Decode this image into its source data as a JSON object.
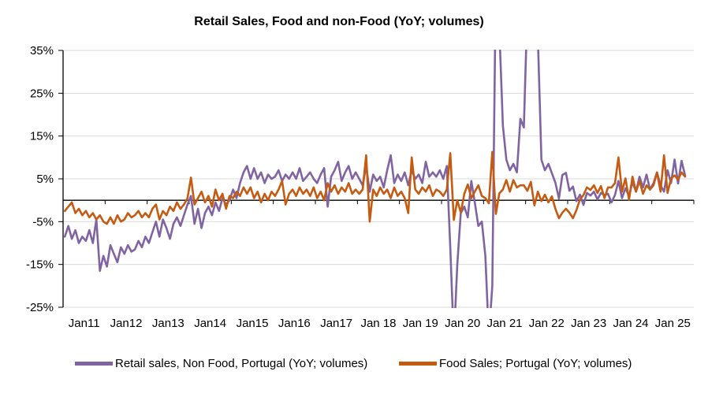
{
  "title": "Retail Sales, Food and non-Food (YoY; volumes)",
  "chart_data": {
    "type": "line",
    "title": "Retail Sales, Food and non-Food (YoY; volumes)",
    "x_unit": "month",
    "x_start_label": "Jan11",
    "x_axis_months_span": 180,
    "x_tick_labels": [
      "Jan11",
      "Jan12",
      "Jan13",
      "Jan14",
      "Jan15",
      "Jan16",
      "Jan17",
      "Jan 18",
      "Jan 19",
      "Jan 20",
      "Jan 21",
      "Jan 22",
      "Jan 23",
      "Jan 24",
      "Jan 25"
    ],
    "y_ticks": [
      35,
      25,
      15,
      5,
      -5,
      -15,
      -25
    ],
    "y_tick_labels": [
      "35%",
      "25%",
      "15%",
      "5%",
      "-5%",
      "-15%",
      "-25%"
    ],
    "ylim": [
      -25,
      35
    ],
    "grid": true,
    "legend_position": "bottom",
    "colors": {
      "grid": "#D9D9D9",
      "axis": "#000000",
      "text": "#000000"
    },
    "series": [
      {
        "name": "Retail sales, Non Food, Portugal (YoY; volumes)",
        "color": "#8064A2",
        "values": [
          -8.5,
          -6,
          -9,
          -7,
          -10,
          -8.5,
          -9.5,
          -7,
          -10,
          -4.5,
          -16.5,
          -13,
          -15.5,
          -10.5,
          -12.5,
          -14.5,
          -11,
          -12.5,
          -10.5,
          -12,
          -11.5,
          -9.5,
          -11,
          -8.5,
          -10,
          -7.5,
          -5,
          -8.5,
          -4.5,
          -6.5,
          -9,
          -5.5,
          -4,
          -6,
          -3.5,
          -1,
          1,
          -5.5,
          -2,
          -6.5,
          -3,
          -1.5,
          -3.5,
          -0.5,
          -2.5,
          0.5,
          -1,
          0,
          2.5,
          0.5,
          4,
          6.5,
          8,
          5,
          7.5,
          5,
          6.5,
          4,
          6,
          5,
          5.5,
          7,
          4.5,
          6,
          5,
          6.5,
          5,
          7.5,
          4.5,
          5.5,
          6.5,
          5,
          4,
          6,
          7.5,
          -1.5,
          5.5,
          7,
          9,
          4.5,
          6.5,
          8,
          5,
          6.5,
          5,
          3.5,
          8,
          2,
          6,
          4.5,
          5.5,
          3,
          7,
          10.5,
          4,
          6,
          4.5,
          6.5,
          3.5,
          7,
          5,
          6,
          4,
          9,
          5.5,
          6.5,
          5.5,
          7,
          5,
          8,
          -11,
          -33,
          -15,
          -3,
          -1.5,
          -4,
          4.5,
          -0.5,
          -6,
          -5,
          -13,
          -32,
          -20,
          52,
          40,
          17.5,
          9.5,
          7,
          8.5,
          6.5,
          19,
          17,
          45,
          50,
          42,
          38,
          9.5,
          7,
          8.5,
          6.3,
          4.1,
          0.4,
          5.9,
          6.4,
          2.2,
          3.2,
          -0.2,
          1.3,
          -1.1,
          1.7,
          1.1,
          2,
          0.2,
          1.7,
          1.2,
          1.5,
          -0.5,
          1.2,
          4.5,
          0.5,
          2.8,
          1,
          4.2,
          2,
          5.5,
          3,
          6,
          2.5,
          4,
          6.5,
          3.5,
          2,
          7,
          4,
          9.5,
          3.9,
          9.2,
          5.8
        ]
      },
      {
        "name": "Food Sales; Portugal (YoY; volumes)",
        "color": "#C55A11",
        "values": [
          -2.5,
          -1.5,
          -0.5,
          -3,
          -2,
          -3.5,
          -2.5,
          -4,
          -3,
          -4.5,
          -3.5,
          -5,
          -5.5,
          -4,
          -5.5,
          -3.5,
          -5,
          -4.5,
          -3,
          -4,
          -3.5,
          -2.5,
          -4,
          -3,
          -4,
          -2,
          -1,
          -4.5,
          -2.5,
          -3.5,
          -1.5,
          -2.5,
          -0.5,
          -2,
          -1,
          0.5,
          5.3,
          -1,
          0.5,
          2,
          -0.5,
          1,
          -1.5,
          2.5,
          0,
          1.5,
          -2,
          1,
          0.5,
          2,
          1,
          3,
          1.5,
          3,
          0.5,
          2,
          -0.5,
          1.5,
          0,
          2,
          1,
          2.5,
          4.5,
          -1,
          1.5,
          2.5,
          1,
          3,
          1.5,
          2.5,
          1,
          3,
          0.5,
          2,
          0,
          4,
          2,
          3.5,
          1.5,
          3,
          2,
          4,
          1.5,
          2.5,
          1.5,
          2.5,
          10.5,
          -5,
          2.5,
          1,
          3,
          1.5,
          2.5,
          0.5,
          3,
          1,
          2,
          0.5,
          -3,
          10,
          2.5,
          1.5,
          3,
          2,
          3.5,
          1,
          2.5,
          2,
          1,
          2.5,
          11,
          -4.6,
          0,
          -2.9,
          1.5,
          3.7,
          0.5,
          2,
          3.5,
          1,
          0.5,
          -0.7,
          11.3,
          -3.2,
          1.6,
          2.5,
          4.7,
          2,
          4.7,
          3,
          3.5,
          3.5,
          2.2,
          4.3,
          -1.2,
          2,
          -0.2,
          1.3,
          -0.5,
          0.9,
          -2,
          -4.2,
          -2.9,
          -2,
          -2.9,
          -4.2,
          -2.3,
          0.2,
          1.2,
          3,
          2.4,
          3.5,
          1.7,
          3.3,
          0.5,
          3,
          3,
          4,
          10,
          2,
          5.1,
          0.1,
          5.5,
          2,
          4.5,
          1.5,
          3.5,
          2.5,
          3.5,
          6.5,
          2,
          10.5,
          1.7,
          5.1,
          5.8,
          4.8,
          6.5,
          5.5
        ]
      }
    ]
  }
}
